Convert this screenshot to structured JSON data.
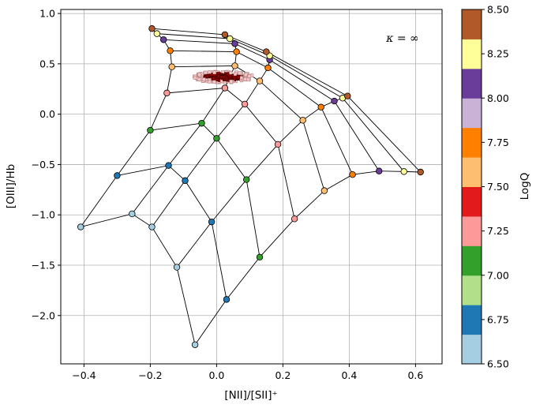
{
  "chart_data": {
    "type": "scatter",
    "xlabel": "[NII]/[SII]⁺",
    "ylabel": "[OIII]/Hb",
    "xlim": [
      -0.47,
      0.68
    ],
    "ylim": [
      -2.48,
      1.04
    ],
    "xticks": [
      -0.4,
      -0.2,
      0.0,
      0.2,
      0.4,
      0.6
    ],
    "xtick_labels": [
      "−0.4",
      "−0.2",
      "0.0",
      "0.2",
      "0.4",
      "0.6"
    ],
    "yticks": [
      1.0,
      0.5,
      0.0,
      -0.5,
      -1.0,
      -1.5,
      -2.0
    ],
    "ytick_labels": [
      "1.0",
      "0.5",
      "0.0",
      "−0.5",
      "−1.0",
      "−1.5",
      "−2.0"
    ],
    "grid": true,
    "annotation": "κ = ∞",
    "colorbar": {
      "label": "LogQ",
      "levels": [
        6.5,
        6.75,
        7.0,
        7.25,
        7.5,
        7.75,
        8.0,
        8.25,
        8.5
      ],
      "tick_labels": [
        "6.50",
        "6.75",
        "7.00",
        "7.25",
        "7.50",
        "7.75",
        "8.00",
        "8.25",
        "8.50"
      ],
      "colors": [
        "#a6cee3",
        "#1f78b4",
        "#b2df8a",
        "#33a02c",
        "#fb9a99",
        "#e31a1c",
        "#fdbf6f",
        "#ff7f00",
        "#cab2d6",
        "#6a3d9a",
        "#ffff99",
        "#b15928"
      ]
    },
    "logq_values": [
      6.5,
      6.75,
      7.0,
      7.25,
      7.5,
      7.75,
      8.0,
      8.25,
      8.5
    ],
    "logq_colors": [
      "#a6cee3",
      "#1f78b4",
      "#33a02c",
      "#fb9a99",
      "#fdbf6f",
      "#ff7f00",
      "#6a3d9a",
      "#ffff99",
      "#b15928"
    ],
    "grid_curves": [
      [
        [
          -0.41,
          -1.12
        ],
        [
          -0.3,
          -0.61
        ],
        [
          -0.2,
          -0.16
        ],
        [
          -0.15,
          0.21
        ],
        [
          -0.135,
          0.47
        ],
        [
          -0.14,
          0.63
        ],
        [
          -0.16,
          0.74
        ],
        [
          -0.18,
          0.8
        ],
        [
          -0.195,
          0.85
        ]
      ],
      [
        [
          -0.255,
          -0.99
        ],
        [
          -0.145,
          -0.51
        ],
        [
          -0.045,
          -0.09
        ],
        [
          0.025,
          0.26
        ],
        [
          0.055,
          0.48
        ],
        [
          0.06,
          0.62
        ],
        [
          0.055,
          0.7
        ],
        [
          0.04,
          0.75
        ],
        [
          0.025,
          0.79
        ]
      ],
      [
        [
          -0.195,
          -1.12
        ],
        [
          -0.095,
          -0.66
        ],
        [
          0.0,
          -0.24
        ],
        [
          0.085,
          0.1
        ],
        [
          0.13,
          0.33
        ],
        [
          0.155,
          0.46
        ],
        [
          0.16,
          0.54
        ],
        [
          0.16,
          0.58
        ],
        [
          0.15,
          0.62
        ]
      ],
      [
        [
          -0.12,
          -1.52
        ],
        [
          -0.015,
          -1.07
        ],
        [
          0.09,
          -0.65
        ],
        [
          0.185,
          -0.3
        ],
        [
          0.26,
          -0.06
        ],
        [
          0.315,
          0.07
        ],
        [
          0.355,
          0.13
        ],
        [
          0.38,
          0.16
        ],
        [
          0.395,
          0.18
        ]
      ],
      [
        [
          -0.065,
          -2.29
        ],
        [
          0.03,
          -1.84
        ],
        [
          0.13,
          -1.42
        ],
        [
          0.235,
          -1.04
        ],
        [
          0.325,
          -0.76
        ],
        [
          0.41,
          -0.6
        ],
        [
          0.49,
          -0.565
        ],
        [
          0.565,
          -0.57
        ],
        [
          0.615,
          -0.575
        ]
      ]
    ],
    "cloud": {
      "center": [
        0.02,
        0.37
      ],
      "extent_x": [
        -0.06,
        0.12
      ],
      "extent_y": [
        0.32,
        0.43
      ],
      "marker": "square",
      "color": "#8b0000"
    }
  }
}
